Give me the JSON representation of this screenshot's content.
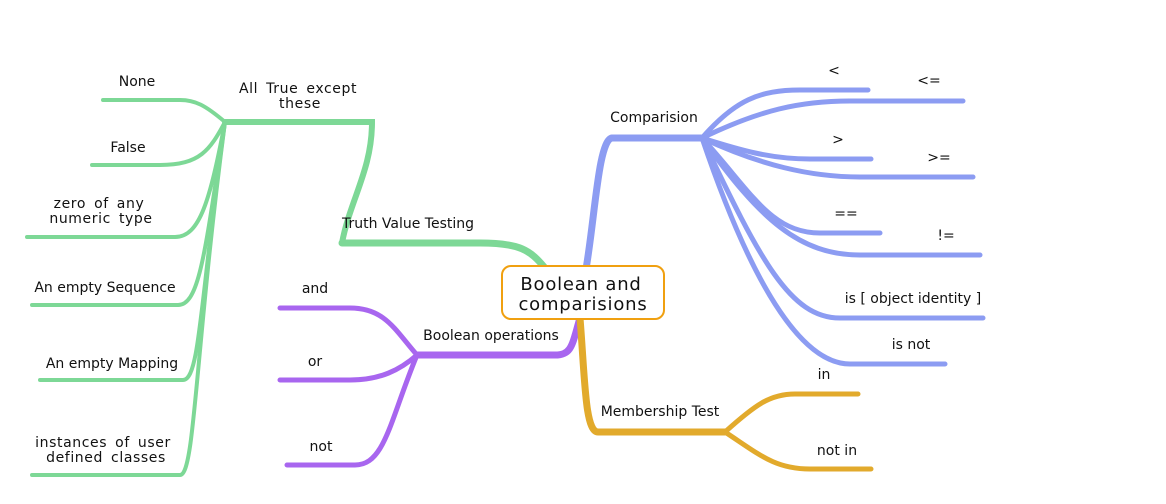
{
  "central_topic": {
    "line1": "Boolean  and",
    "line2": "comparisions"
  },
  "colors": {
    "green": "#7dd896",
    "purple": "#a866ef",
    "blue": "#8c9cf2",
    "orange": "#e2aa2c",
    "center_border": "#f0a010"
  },
  "truth": {
    "label": "Truth Value Testing",
    "sub": {
      "line1": "All  True  except",
      "line2": "these"
    },
    "items": [
      "None",
      "False",
      "zero  of  any",
      "numeric  type",
      "An empty Sequence",
      "An empty Mapping",
      "instances  of  user",
      "defined  classes"
    ]
  },
  "boolean_ops": {
    "label": "Boolean operations",
    "items": [
      "and",
      "or",
      "not"
    ]
  },
  "comparision": {
    "label": "Comparision",
    "items": [
      "<",
      "<=",
      ">",
      ">=",
      "==",
      "!=",
      "is [ object identity ]",
      "is not"
    ]
  },
  "membership": {
    "label": "Membership Test",
    "items": [
      "in",
      "not in"
    ]
  }
}
